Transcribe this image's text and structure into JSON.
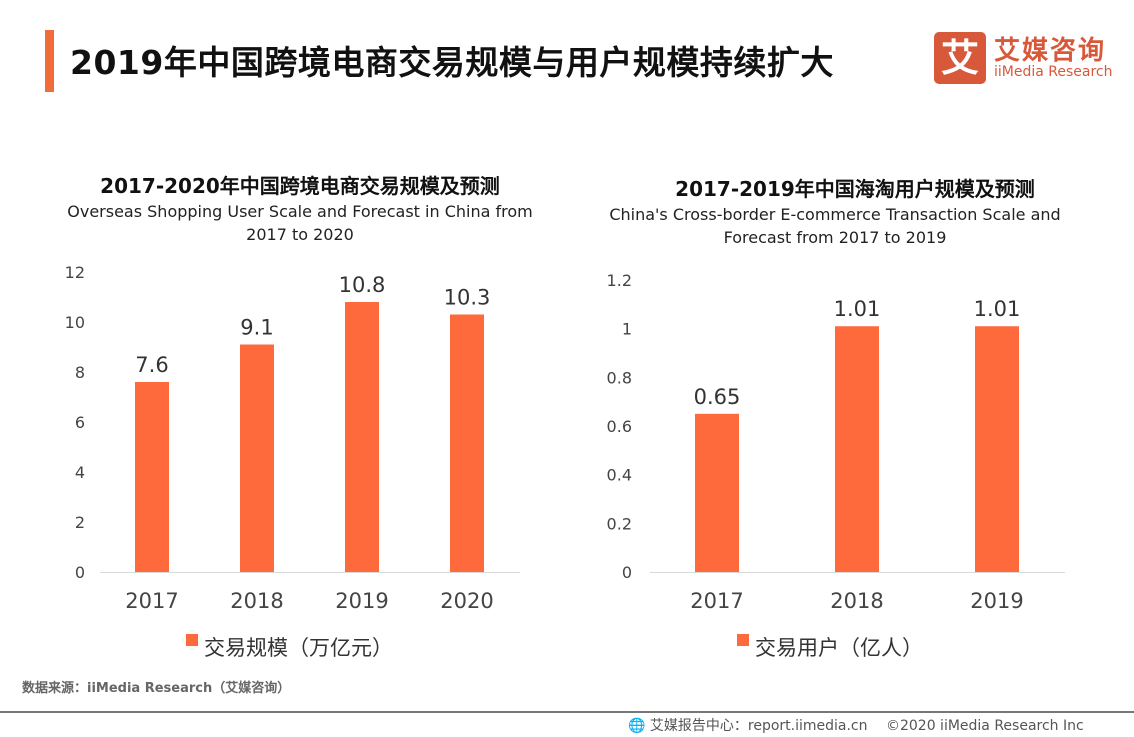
{
  "header": {
    "title": "2019年中国跨境电商交易规模与用户规模持续扩大"
  },
  "logo": {
    "mark": "艾",
    "name_cn": "艾媒咨询",
    "name_en": "iiMedia Research"
  },
  "colors": {
    "accent": "#f26b3a",
    "bar": "#ff6a3d",
    "brand": "#d8583a"
  },
  "chart_data": [
    {
      "type": "bar",
      "title": "2017-2020年中国跨境电商交易规模及预测",
      "subtitle": "Overseas Shopping User Scale and Forecast in China from 2017 to 2020",
      "categories": [
        "2017",
        "2018",
        "2019",
        "2020"
      ],
      "series": [
        {
          "name": "交易规模（万亿元）",
          "values": [
            7.6,
            9.1,
            10.8,
            10.3
          ]
        }
      ],
      "data_labels": [
        "7.6",
        "9.1",
        "10.8",
        "10.3"
      ],
      "yticks": [
        "0",
        "2",
        "4",
        "6",
        "8",
        "10",
        "12"
      ],
      "ylim": [
        0,
        12
      ],
      "grid": false,
      "legend": "bottom"
    },
    {
      "type": "bar",
      "title": "2017-2019年中国海淘用户规模及预测",
      "subtitle": "China's Cross-border E-commerce Transaction Scale and Forecast from 2017 to 2019",
      "categories": [
        "2017",
        "2018",
        "2019"
      ],
      "series": [
        {
          "name": "交易用户（亿人）",
          "values": [
            0.65,
            1.01,
            1.01
          ]
        }
      ],
      "data_labels": [
        "0.65",
        "1.01",
        "1.01"
      ],
      "yticks": [
        "0",
        "0.2",
        "0.4",
        "0.6",
        "0.8",
        "1",
        "1.2"
      ],
      "ylim": [
        0,
        1.2
      ],
      "grid": false,
      "legend": "bottom"
    }
  ],
  "source": "数据来源：iiMedia Research（艾媒咨询）",
  "footer": {
    "icon": "globe-cursor-icon",
    "report_center": "艾媒报告中心：report.iimedia.cn",
    "copyright": "©2020  iiMedia Research  Inc"
  }
}
